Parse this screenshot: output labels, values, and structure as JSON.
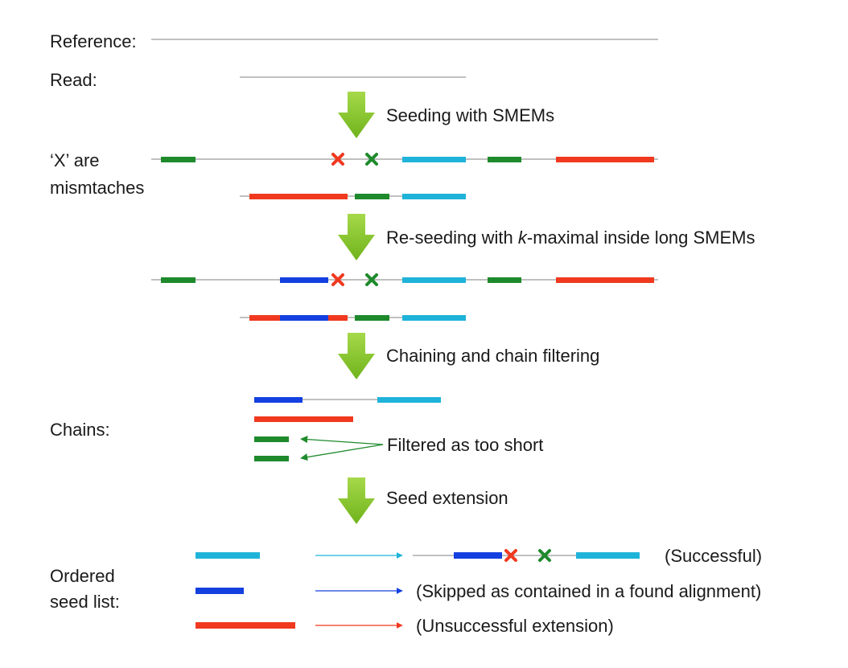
{
  "labels": {
    "reference": "Reference:",
    "read": "Read:",
    "x_are": "‘X’ are",
    "mismatches": "mismtaches",
    "chains": "Chains:",
    "ordered": "Ordered",
    "seed_list": "seed list:"
  },
  "steps": {
    "seeding": "Seeding with SMEMs",
    "reseeding_pre": "Re-seeding with ",
    "reseeding_k": "k",
    "reseeding_post": "-maximal inside long SMEMs",
    "chaining": "Chaining and chain filtering",
    "extension": "Seed extension"
  },
  "annotations": {
    "filtered": "Filtered as too short",
    "successful": "(Successful)",
    "skipped": "(Skipped as contained in a found alignment)",
    "unsuccessful": "(Unsuccessful extension)"
  },
  "colors": {
    "green": "#1e8a2c",
    "cyan": "#1fb3d9",
    "red": "#f0391f",
    "blue": "#1440e0",
    "line": "#9a9a9a",
    "arrow": "#82c626"
  }
}
